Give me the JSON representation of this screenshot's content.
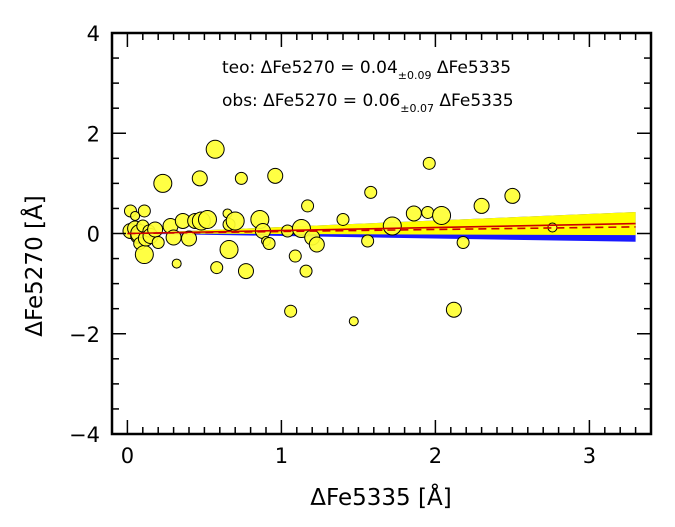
{
  "chart_data": {
    "type": "scatter",
    "xlabel": "ΔFe5335  [Å]",
    "ylabel": "ΔFe5270  [Å]",
    "xlim": [
      -0.1,
      3.4
    ],
    "ylim": [
      -4,
      4
    ],
    "xticks": [
      0,
      1,
      2,
      3
    ],
    "yticks": [
      4,
      2,
      0,
      -2,
      -4
    ],
    "tick_labels_x": [
      "0",
      "1",
      "2",
      "3"
    ],
    "tick_labels_y": [
      "4",
      "2",
      "0",
      "−2",
      "−4"
    ],
    "grid": false,
    "annotations": [
      {
        "prefix": "teo:  ΔFe5270  =  ",
        "coef": "0.04",
        "err": "±0.09",
        "suffix": " ΔFe5335"
      },
      {
        "prefix": "obs:  ΔFe5270  =  ",
        "coef": "0.06",
        "err": "±0.07",
        "suffix": " ΔFe5335"
      }
    ],
    "fits": [
      {
        "slope": 0.06,
        "err": 0.07,
        "color": "#ffff00",
        "line_color": "#cc0000",
        "line_style": "solid"
      },
      {
        "slope": 0.04,
        "err": 0.09,
        "color": "#0000ff",
        "line_color": "#cc0000",
        "line_style": "dashed"
      }
    ],
    "points": [
      {
        "x": 0.02,
        "y": 0.45,
        "s": 2
      },
      {
        "x": 0.05,
        "y": 0.35,
        "s": 1
      },
      {
        "x": 0.02,
        "y": 0.05,
        "s": 3
      },
      {
        "x": 0.05,
        "y": 0.1,
        "s": 3
      },
      {
        "x": 0.07,
        "y": -0.05,
        "s": 3
      },
      {
        "x": 0.08,
        "y": 0.0,
        "s": 4
      },
      {
        "x": 0.08,
        "y": -0.2,
        "s": 2
      },
      {
        "x": 0.1,
        "y": 0.15,
        "s": 2
      },
      {
        "x": 0.11,
        "y": -0.42,
        "s": 4
      },
      {
        "x": 0.12,
        "y": -0.1,
        "s": 3
      },
      {
        "x": 0.14,
        "y": 0.05,
        "s": 2
      },
      {
        "x": 0.15,
        "y": -0.05,
        "s": 3
      },
      {
        "x": 0.18,
        "y": 0.08,
        "s": 3
      },
      {
        "x": 0.2,
        "y": -0.18,
        "s": 2
      },
      {
        "x": 0.11,
        "y": 0.45,
        "s": 2
      },
      {
        "x": 0.23,
        "y": 1.0,
        "s": 4
      },
      {
        "x": 0.28,
        "y": 0.15,
        "s": 3
      },
      {
        "x": 0.3,
        "y": -0.08,
        "s": 3
      },
      {
        "x": 0.32,
        "y": -0.6,
        "s": 1
      },
      {
        "x": 0.36,
        "y": 0.25,
        "s": 3
      },
      {
        "x": 0.4,
        "y": -0.1,
        "s": 3
      },
      {
        "x": 0.44,
        "y": 0.25,
        "s": 3
      },
      {
        "x": 0.47,
        "y": 1.1,
        "s": 3
      },
      {
        "x": 0.48,
        "y": 0.25,
        "s": 4
      },
      {
        "x": 0.52,
        "y": 0.28,
        "s": 4
      },
      {
        "x": 0.57,
        "y": 1.68,
        "s": 4
      },
      {
        "x": 0.58,
        "y": -0.68,
        "s": 2
      },
      {
        "x": 0.65,
        "y": 0.4,
        "s": 1
      },
      {
        "x": 0.66,
        "y": 0.18,
        "s": 2
      },
      {
        "x": 0.66,
        "y": -0.32,
        "s": 4
      },
      {
        "x": 0.7,
        "y": 0.25,
        "s": 4
      },
      {
        "x": 0.74,
        "y": 1.1,
        "s": 2
      },
      {
        "x": 0.77,
        "y": -0.75,
        "s": 3
      },
      {
        "x": 0.86,
        "y": 0.28,
        "s": 4
      },
      {
        "x": 0.88,
        "y": 0.05,
        "s": 3
      },
      {
        "x": 0.9,
        "y": -0.15,
        "s": 1
      },
      {
        "x": 0.92,
        "y": -0.2,
        "s": 2
      },
      {
        "x": 0.96,
        "y": 1.15,
        "s": 3
      },
      {
        "x": 1.04,
        "y": 0.05,
        "s": 2
      },
      {
        "x": 1.06,
        "y": -1.55,
        "s": 2
      },
      {
        "x": 1.09,
        "y": -0.45,
        "s": 2
      },
      {
        "x": 1.13,
        "y": 0.1,
        "s": 4
      },
      {
        "x": 1.16,
        "y": -0.75,
        "s": 2
      },
      {
        "x": 1.17,
        "y": 0.55,
        "s": 2
      },
      {
        "x": 1.2,
        "y": -0.08,
        "s": 3
      },
      {
        "x": 1.23,
        "y": -0.22,
        "s": 3
      },
      {
        "x": 1.4,
        "y": 0.28,
        "s": 2
      },
      {
        "x": 1.47,
        "y": -1.75,
        "s": 1
      },
      {
        "x": 1.56,
        "y": -0.15,
        "s": 2
      },
      {
        "x": 1.58,
        "y": 0.82,
        "s": 2
      },
      {
        "x": 1.72,
        "y": 0.15,
        "s": 4
      },
      {
        "x": 1.86,
        "y": 0.4,
        "s": 3
      },
      {
        "x": 1.95,
        "y": 0.42,
        "s": 2
      },
      {
        "x": 1.96,
        "y": 1.4,
        "s": 2
      },
      {
        "x": 2.04,
        "y": 0.36,
        "s": 4
      },
      {
        "x": 2.12,
        "y": -1.52,
        "s": 3
      },
      {
        "x": 2.18,
        "y": -0.18,
        "s": 2
      },
      {
        "x": 2.3,
        "y": 0.55,
        "s": 3
      },
      {
        "x": 2.5,
        "y": 0.75,
        "s": 3
      },
      {
        "x": 2.76,
        "y": 0.12,
        "s": 1
      }
    ]
  }
}
